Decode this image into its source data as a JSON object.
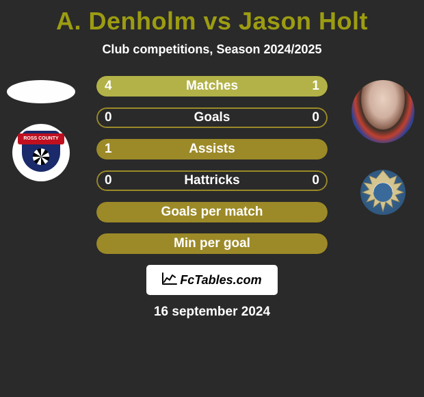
{
  "title": "A. Denholm vs Jason Holt",
  "subtitle": "Club competitions, Season 2024/2025",
  "date": "16 september 2024",
  "watermark": "FcTables.com",
  "colors": {
    "bar_primary": "#9c8a28",
    "bar_secondary": "#b2b248",
    "bar_empty_outline": "#9c8a28",
    "text": "#ffffff",
    "title": "#9c9c12",
    "background": "#2a2a2a"
  },
  "left_player": {
    "name": "A. Denholm",
    "club": "Ross County FC"
  },
  "right_player": {
    "name": "Jason Holt",
    "club": "St Johnstone"
  },
  "stats": [
    {
      "label": "Matches",
      "left_value": "4",
      "right_value": "1",
      "left_pct": 80,
      "right_pct": 20,
      "style": "split"
    },
    {
      "label": "Goals",
      "left_value": "0",
      "right_value": "0",
      "left_pct": 0,
      "right_pct": 0,
      "style": "outline"
    },
    {
      "label": "Assists",
      "left_value": "1",
      "right_value": "",
      "left_pct": 100,
      "right_pct": 0,
      "style": "full_left"
    },
    {
      "label": "Hattricks",
      "left_value": "0",
      "right_value": "0",
      "left_pct": 0,
      "right_pct": 0,
      "style": "outline"
    },
    {
      "label": "Goals per match",
      "left_value": "",
      "right_value": "",
      "left_pct": 100,
      "right_pct": 0,
      "style": "solid"
    },
    {
      "label": "Min per goal",
      "left_value": "",
      "right_value": "",
      "left_pct": 100,
      "right_pct": 0,
      "style": "solid"
    }
  ]
}
